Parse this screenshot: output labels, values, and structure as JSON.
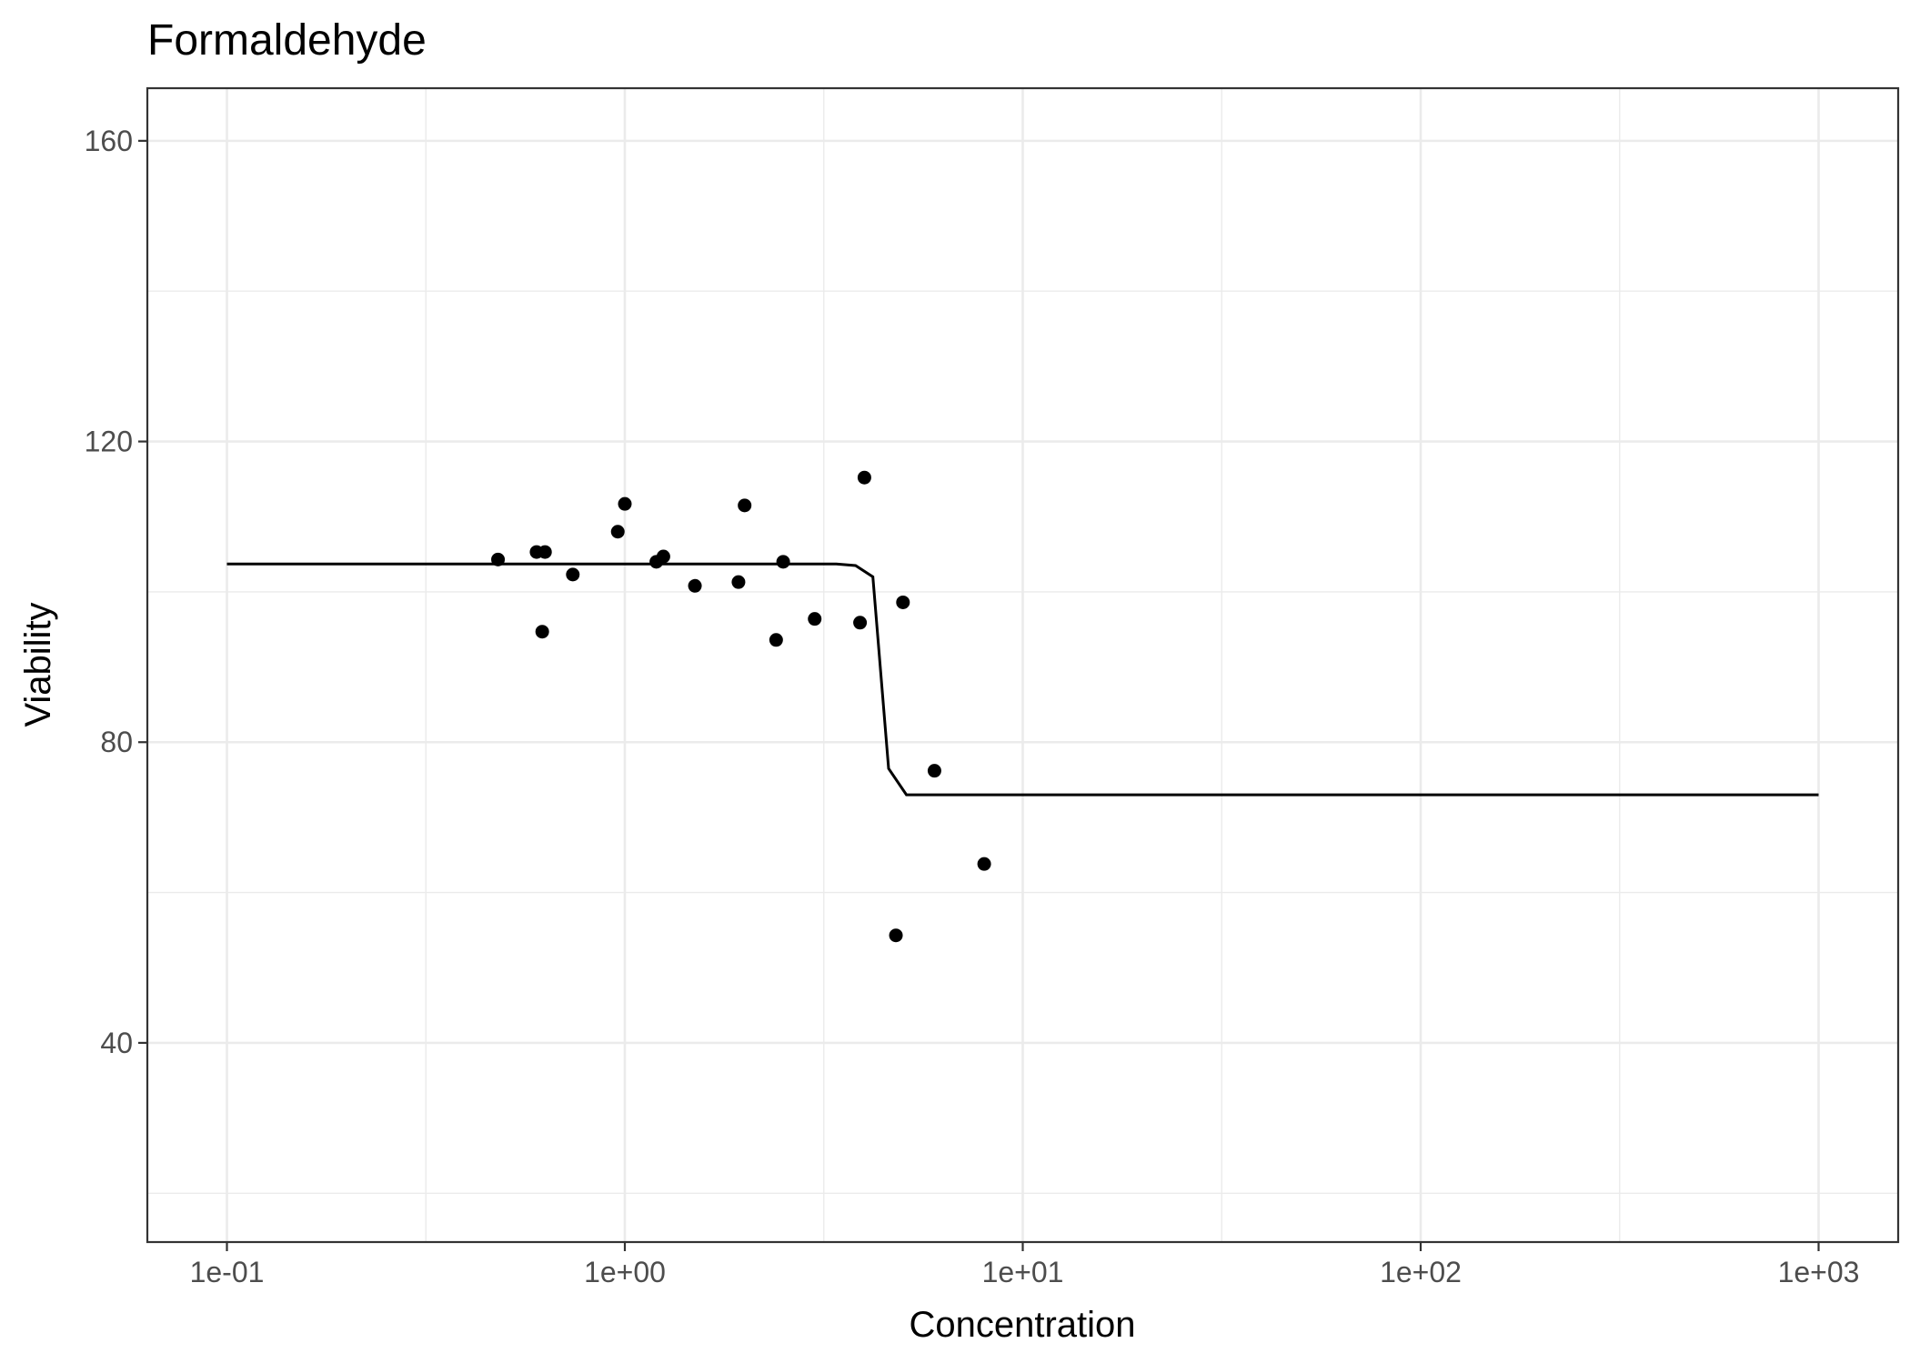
{
  "chart_data": {
    "type": "scatter",
    "title": "Formaldehyde",
    "xlabel": "Concentration",
    "ylabel": "Viability",
    "x_scale": "log10",
    "xlim": [
      0.1,
      1000
    ],
    "ylim": [
      13.5,
      167
    ],
    "grid": true,
    "legend": "none",
    "x_ticks": [
      {
        "value": 0.1,
        "label": "1e-01"
      },
      {
        "value": 1,
        "label": "1e+00"
      },
      {
        "value": 10,
        "label": "1e+01"
      },
      {
        "value": 100,
        "label": "1e+02"
      },
      {
        "value": 1000,
        "label": "1e+03"
      }
    ],
    "y_ticks": [
      {
        "value": 40,
        "label": "40"
      },
      {
        "value": 80,
        "label": "80"
      },
      {
        "value": 120,
        "label": "120"
      },
      {
        "value": 160,
        "label": "160"
      }
    ],
    "points": [
      {
        "x": 0.48,
        "y": 104.3
      },
      {
        "x": 0.6,
        "y": 105.3
      },
      {
        "x": 0.63,
        "y": 105.3
      },
      {
        "x": 0.62,
        "y": 94.7
      },
      {
        "x": 0.74,
        "y": 102.3
      },
      {
        "x": 0.96,
        "y": 108.0
      },
      {
        "x": 1.0,
        "y": 111.7
      },
      {
        "x": 1.2,
        "y": 104.0
      },
      {
        "x": 1.25,
        "y": 104.7
      },
      {
        "x": 1.5,
        "y": 100.8
      },
      {
        "x": 1.93,
        "y": 101.3
      },
      {
        "x": 2.0,
        "y": 111.5
      },
      {
        "x": 2.4,
        "y": 93.6
      },
      {
        "x": 2.5,
        "y": 104.0
      },
      {
        "x": 3.0,
        "y": 96.4
      },
      {
        "x": 3.9,
        "y": 95.9
      },
      {
        "x": 4.0,
        "y": 115.2
      },
      {
        "x": 4.8,
        "y": 54.3
      },
      {
        "x": 5.0,
        "y": 98.6
      },
      {
        "x": 6.0,
        "y": 76.2
      },
      {
        "x": 8.0,
        "y": 63.8
      }
    ],
    "fit_line": [
      {
        "x": 0.1,
        "y": 103.7
      },
      {
        "x": 3.4,
        "y": 103.7
      },
      {
        "x": 3.8,
        "y": 103.5
      },
      {
        "x": 4.2,
        "y": 102.0
      },
      {
        "x": 4.6,
        "y": 76.5
      },
      {
        "x": 5.1,
        "y": 73.0
      },
      {
        "x": 1000,
        "y": 73.0
      }
    ]
  }
}
